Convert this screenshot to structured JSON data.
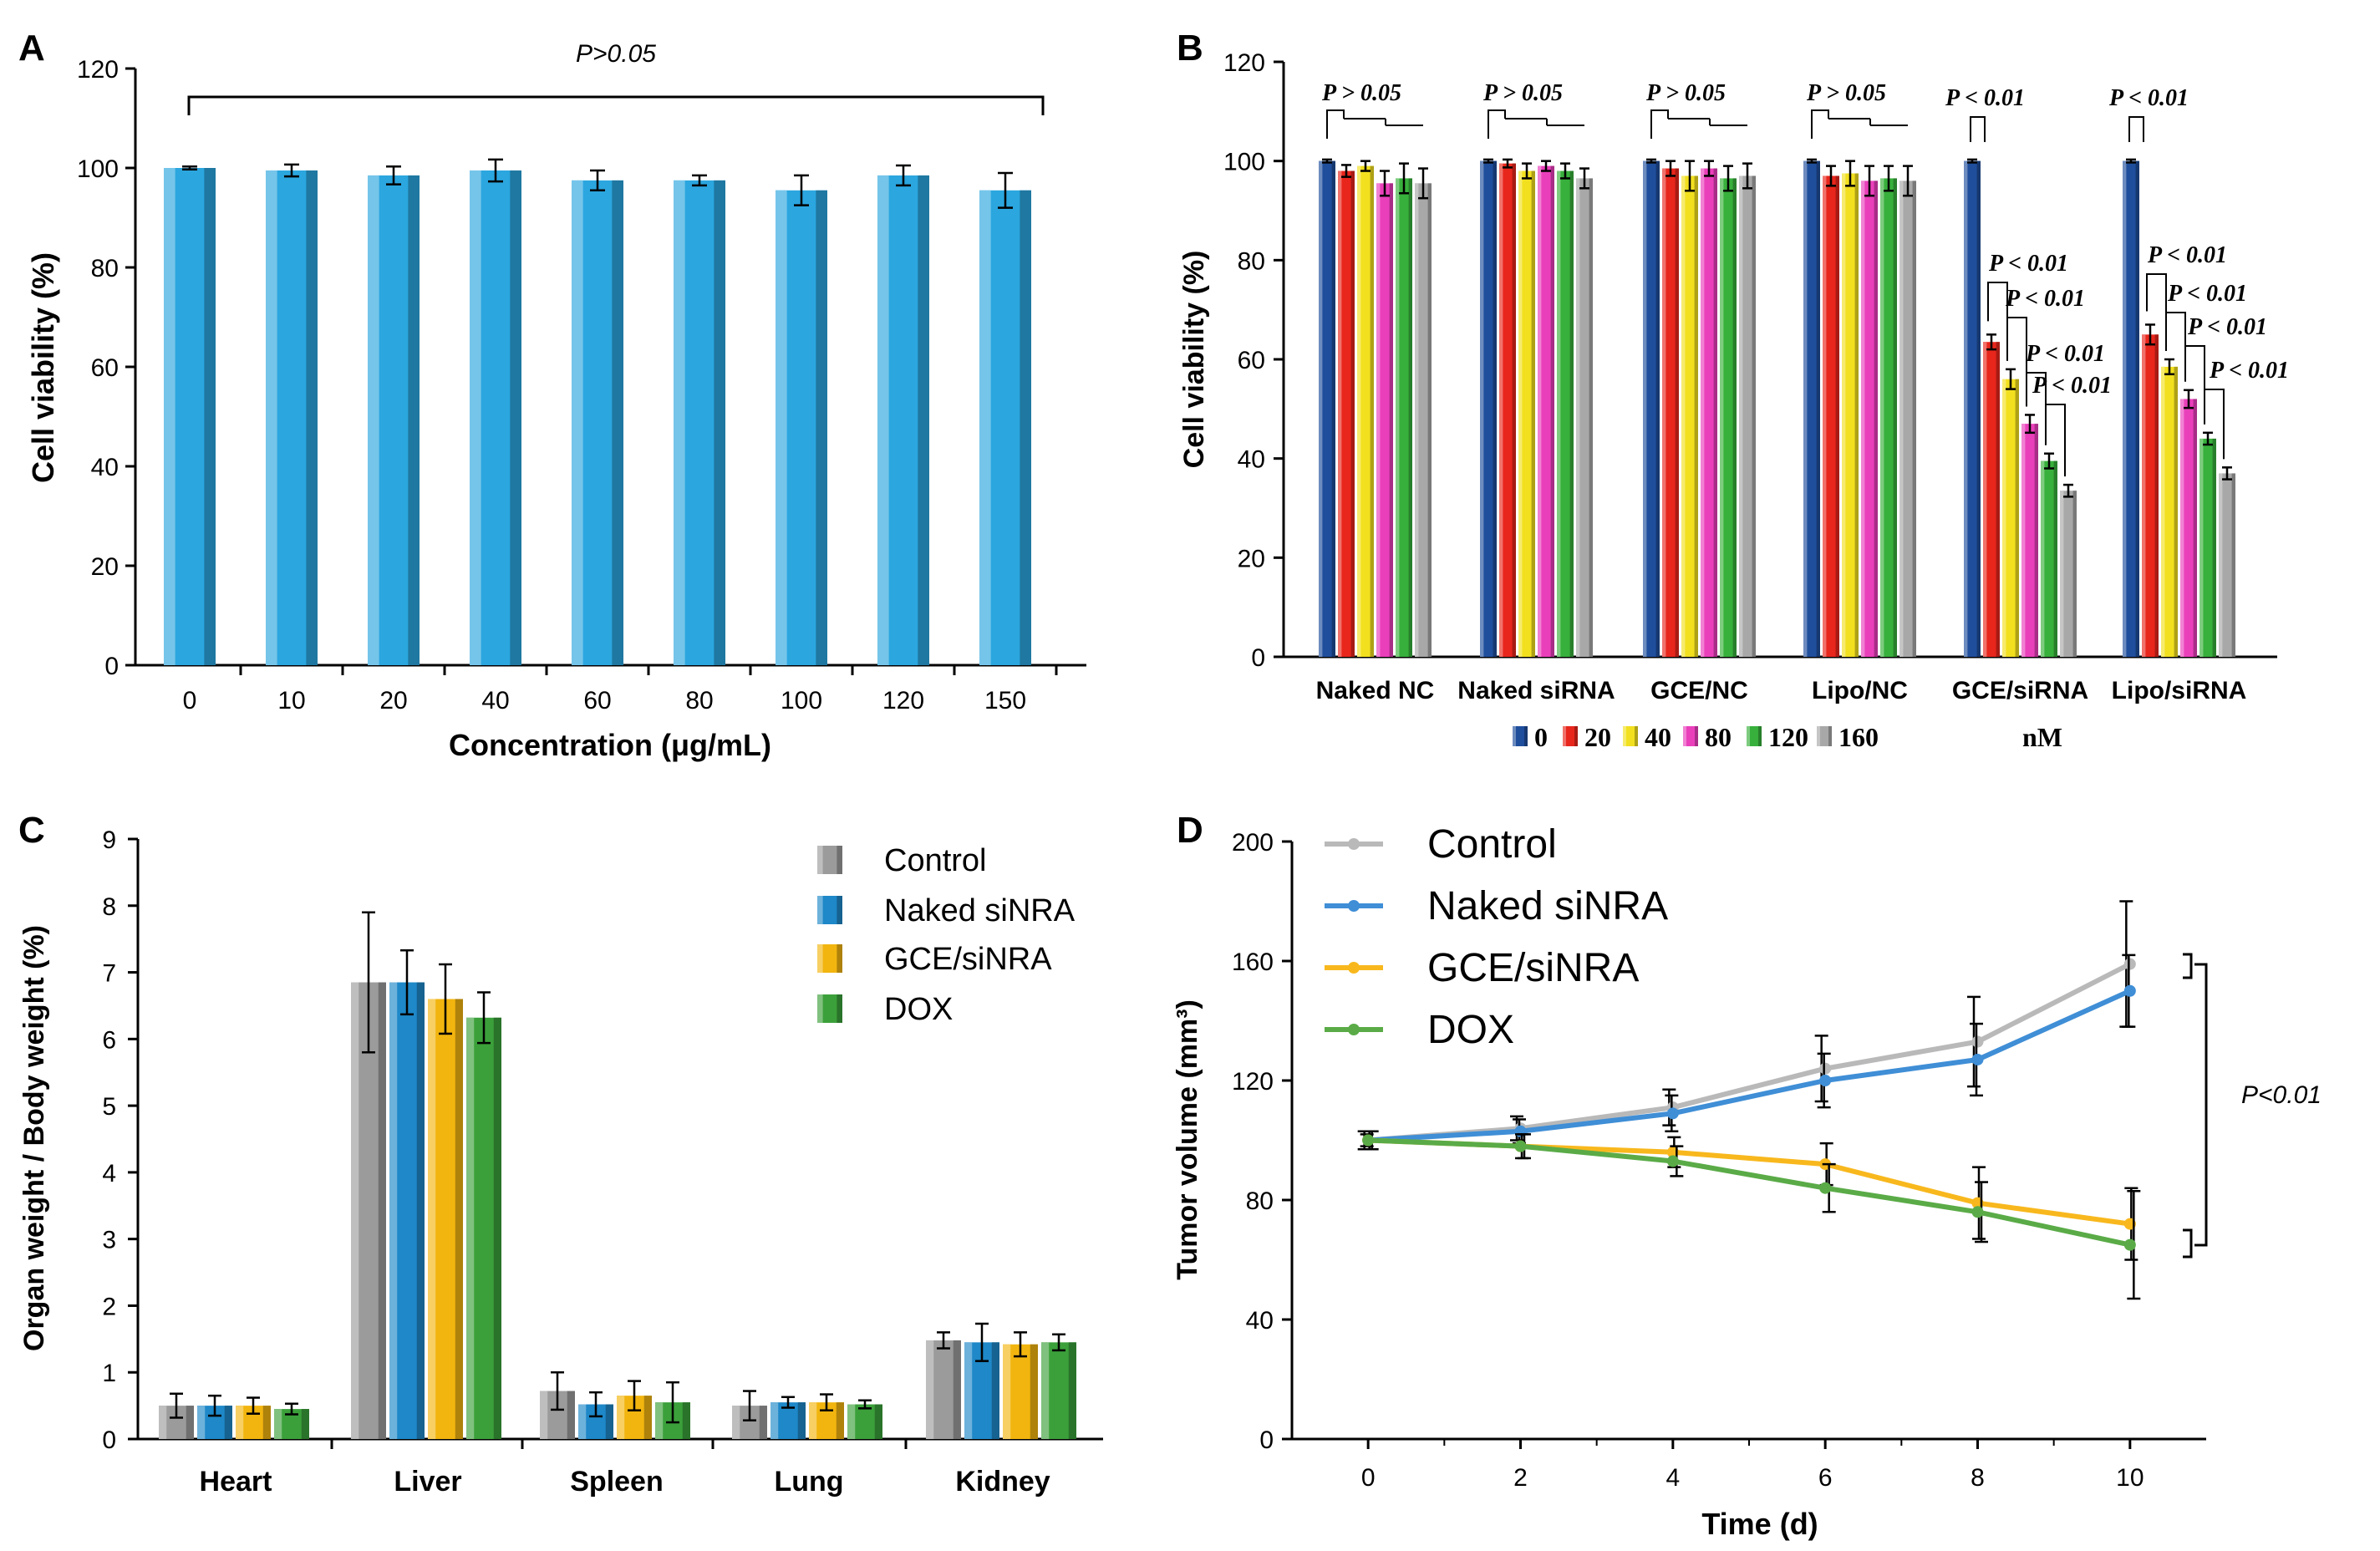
{
  "panels": {
    "A": {
      "letter": "A",
      "annotation": "P>0.05",
      "chart_data": {
        "type": "bar",
        "title": "",
        "xlabel": "Concentration (μg/mL)",
        "ylabel": "Cell viability (%)",
        "ylim": [
          0,
          120
        ],
        "yticks": [
          0,
          20,
          40,
          60,
          80,
          100,
          120
        ],
        "categories": [
          "0",
          "10",
          "20",
          "40",
          "60",
          "80",
          "100",
          "120",
          "150"
        ],
        "values": [
          100,
          99.5,
          98.5,
          99.5,
          97.5,
          97.5,
          95.5,
          98.5,
          95.5
        ],
        "errors": [
          0.3,
          1.2,
          1.8,
          2.2,
          2.0,
          1.0,
          3.0,
          2.0,
          3.5
        ],
        "color": "#2ba6df"
      }
    },
    "B": {
      "letter": "B",
      "unit": "nM",
      "chart_data": {
        "type": "bar",
        "title": "",
        "xlabel": "",
        "ylabel": "Cell viability (%)",
        "ylim": [
          0,
          120
        ],
        "yticks": [
          0,
          20,
          40,
          60,
          80,
          100,
          120
        ],
        "categories": [
          "Naked NC",
          "Naked siRNA",
          "GCE/NC",
          "Lipo/NC",
          "GCE/siRNA",
          "Lipo/siRNA"
        ],
        "series": [
          {
            "name": "0",
            "color": "#1f4e9c",
            "values": [
              100,
              100,
              100,
              100,
              100,
              100
            ],
            "errors": [
              0.3,
              0.3,
              0.3,
              0.3,
              0.3,
              0.3
            ]
          },
          {
            "name": "20",
            "color": "#e8261c",
            "values": [
              98,
              99.5,
              98.5,
              97,
              63.5,
              65
            ],
            "errors": [
              1.2,
              0.8,
              1.5,
              2.0,
              1.5,
              2.0
            ]
          },
          {
            "name": "40",
            "color": "#f2e01f",
            "values": [
              99,
              98,
              97,
              97.5,
              56,
              58.5
            ],
            "errors": [
              1.0,
              1.5,
              3.0,
              2.5,
              2.0,
              1.5
            ]
          },
          {
            "name": "80",
            "color": "#ea3fbb",
            "values": [
              95.5,
              99,
              98.5,
              96,
              47,
              52
            ],
            "errors": [
              2.5,
              1.0,
              1.5,
              3.0,
              1.8,
              1.8
            ]
          },
          {
            "name": "120",
            "color": "#38b03c",
            "values": [
              96.5,
              98,
              96.5,
              96.5,
              39.5,
              44
            ],
            "errors": [
              3.0,
              1.5,
              2.5,
              2.5,
              1.5,
              1.2
            ]
          },
          {
            "name": "160",
            "color": "#a8a8a8",
            "values": [
              95.5,
              96.5,
              97,
              96,
              33.5,
              37
            ],
            "errors": [
              3.0,
              2.0,
              2.5,
              3.0,
              1.2,
              1.2
            ]
          }
        ],
        "annotations": [
          {
            "group": "Naked NC",
            "text": "P > 0.05"
          },
          {
            "group": "Naked siRNA",
            "text": "P > 0.05"
          },
          {
            "group": "GCE/NC",
            "text": "P > 0.05"
          },
          {
            "group": "Lipo/NC",
            "text": "P > 0.05"
          },
          {
            "group": "GCE/siRNA",
            "texts": [
              "P < 0.01",
              "P < 0.01",
              "P < 0.01",
              "P < 0.01",
              "P < 0.01"
            ]
          },
          {
            "group": "Lipo/siRNA",
            "texts": [
              "P < 0.01",
              "P < 0.01",
              "P < 0.01",
              "P < 0.01",
              "P < 0.01"
            ]
          }
        ]
      }
    },
    "C": {
      "letter": "C",
      "chart_data": {
        "type": "bar",
        "title": "",
        "xlabel": "",
        "ylabel": "Organ weight / Body weight (%)",
        "ylim": [
          0,
          9
        ],
        "yticks": [
          0,
          1,
          2,
          3,
          4,
          5,
          6,
          7,
          8,
          9
        ],
        "categories": [
          "Heart",
          "Liver",
          "Spleen",
          "Lung",
          "Kidney"
        ],
        "legend_position": "top-right",
        "series": [
          {
            "name": "Control",
            "color": "#9b9b9b",
            "values": [
              0.5,
              6.85,
              0.72,
              0.5,
              1.48
            ],
            "errors": [
              0.18,
              1.05,
              0.28,
              0.22,
              0.12
            ]
          },
          {
            "name": "Naked siNRA",
            "color": "#1e88c8",
            "values": [
              0.5,
              6.85,
              0.52,
              0.55,
              1.45
            ],
            "errors": [
              0.15,
              0.48,
              0.18,
              0.08,
              0.28
            ]
          },
          {
            "name": "GCE/siNRA",
            "color": "#f2b50f",
            "values": [
              0.5,
              6.6,
              0.65,
              0.55,
              1.42
            ],
            "errors": [
              0.12,
              0.52,
              0.22,
              0.12,
              0.18
            ]
          },
          {
            "name": "DOX",
            "color": "#3ba03a",
            "values": [
              0.45,
              6.32,
              0.55,
              0.52,
              1.45
            ],
            "errors": [
              0.08,
              0.38,
              0.3,
              0.06,
              0.12
            ]
          }
        ]
      }
    },
    "D": {
      "letter": "D",
      "annotation": "P<0.01",
      "chart_data": {
        "type": "line",
        "title": "",
        "xlabel": "Time (d)",
        "ylabel": "Tumor volume (mm³)",
        "ylim": [
          0,
          200
        ],
        "yticks": [
          0,
          40,
          80,
          120,
          160,
          200
        ],
        "xlim": [
          -1,
          11
        ],
        "x": [
          0,
          2,
          4,
          6,
          8,
          10
        ],
        "xticks": [
          0,
          2,
          4,
          6,
          8,
          10
        ],
        "legend_position": "top-left",
        "series": [
          {
            "name": "Control",
            "color": "#b9b9b9",
            "values": [
              100,
              104,
              111,
              124,
              133,
              159
            ],
            "errors": [
              3,
              4,
              6,
              11,
              15,
              21
            ]
          },
          {
            "name": "Naked siNRA",
            "color": "#3f8ed6",
            "values": [
              100,
              103,
              109,
              120,
              127,
              150
            ],
            "errors": [
              2,
              4,
              6,
              9,
              12,
              12
            ]
          },
          {
            "name": "GCE/siNRA",
            "color": "#f8b81d",
            "values": [
              100,
              98,
              96,
              92,
              79,
              72
            ],
            "errors": [
              3,
              4,
              5,
              7,
              12,
              12
            ]
          },
          {
            "name": "DOX",
            "color": "#5aab47",
            "values": [
              100,
              98,
              93,
              84,
              76,
              65
            ],
            "errors": [
              3,
              4,
              5,
              8,
              10,
              18
            ]
          }
        ]
      }
    }
  }
}
